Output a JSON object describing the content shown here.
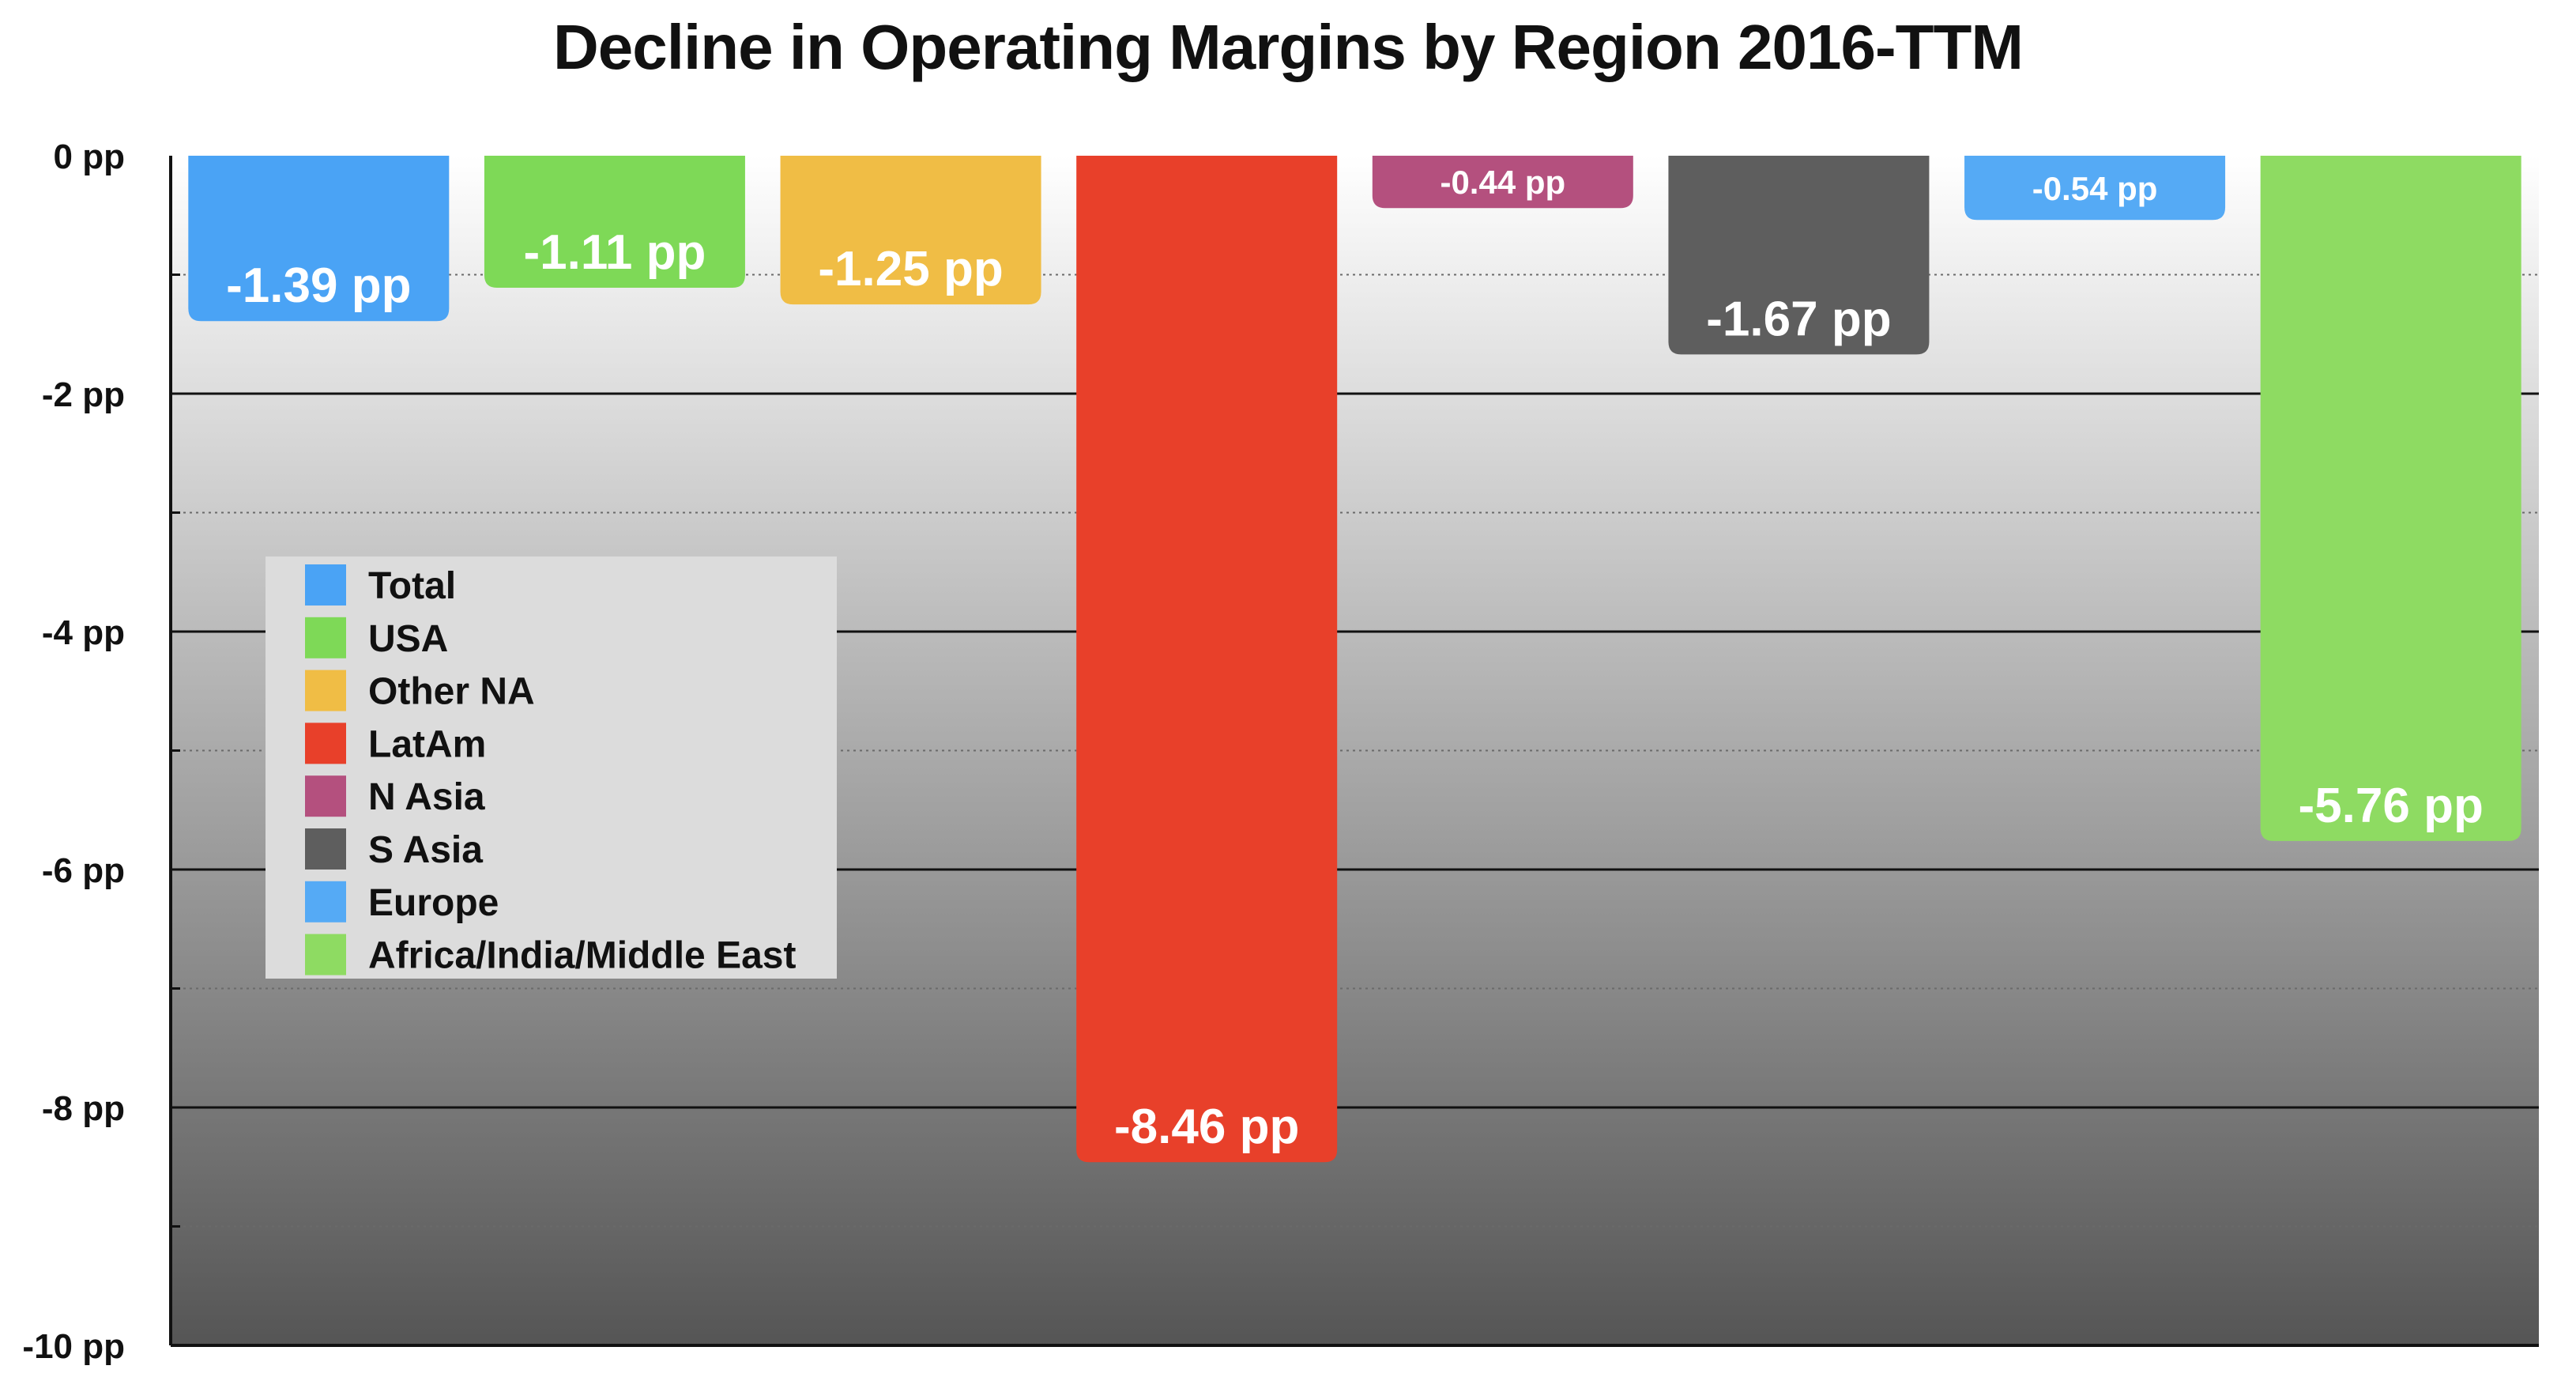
{
  "chart_data": {
    "type": "bar",
    "title": "Decline in Operating Margins by Region 2016-TTM",
    "unit": "pp",
    "ylim": [
      -10,
      0
    ],
    "yticks": [
      0,
      -2,
      -4,
      -6,
      -8,
      -10
    ],
    "ytick_labels": [
      "0 pp",
      "-2 pp",
      "-4 pp",
      "-6 pp",
      "-8 pp",
      "-10 pp"
    ],
    "grid": true,
    "legend_position": "left",
    "categories": [
      "Total",
      "USA",
      "Other NA",
      "LatAm",
      "N Asia",
      "S Asia",
      "Europe",
      "Africa/India/Middle East"
    ],
    "values": [
      -1.39,
      -1.11,
      -1.25,
      -8.46,
      -0.44,
      -1.67,
      -0.54,
      -5.76
    ],
    "data_labels": [
      "-1.39 pp",
      "-1.11 pp",
      "-1.25 pp",
      "-8.46 pp",
      "-0.44 pp",
      "-1.67 pp",
      "-0.54 pp",
      "-5.76 pp"
    ],
    "colors": [
      "#4aa3f5",
      "#7ed957",
      "#f0bd45",
      "#e8402a",
      "#b4507e",
      "#5e5e5e",
      "#55aaf5",
      "#8edb62"
    ],
    "background_gradient": [
      "#ffffff",
      "#555555"
    ]
  }
}
